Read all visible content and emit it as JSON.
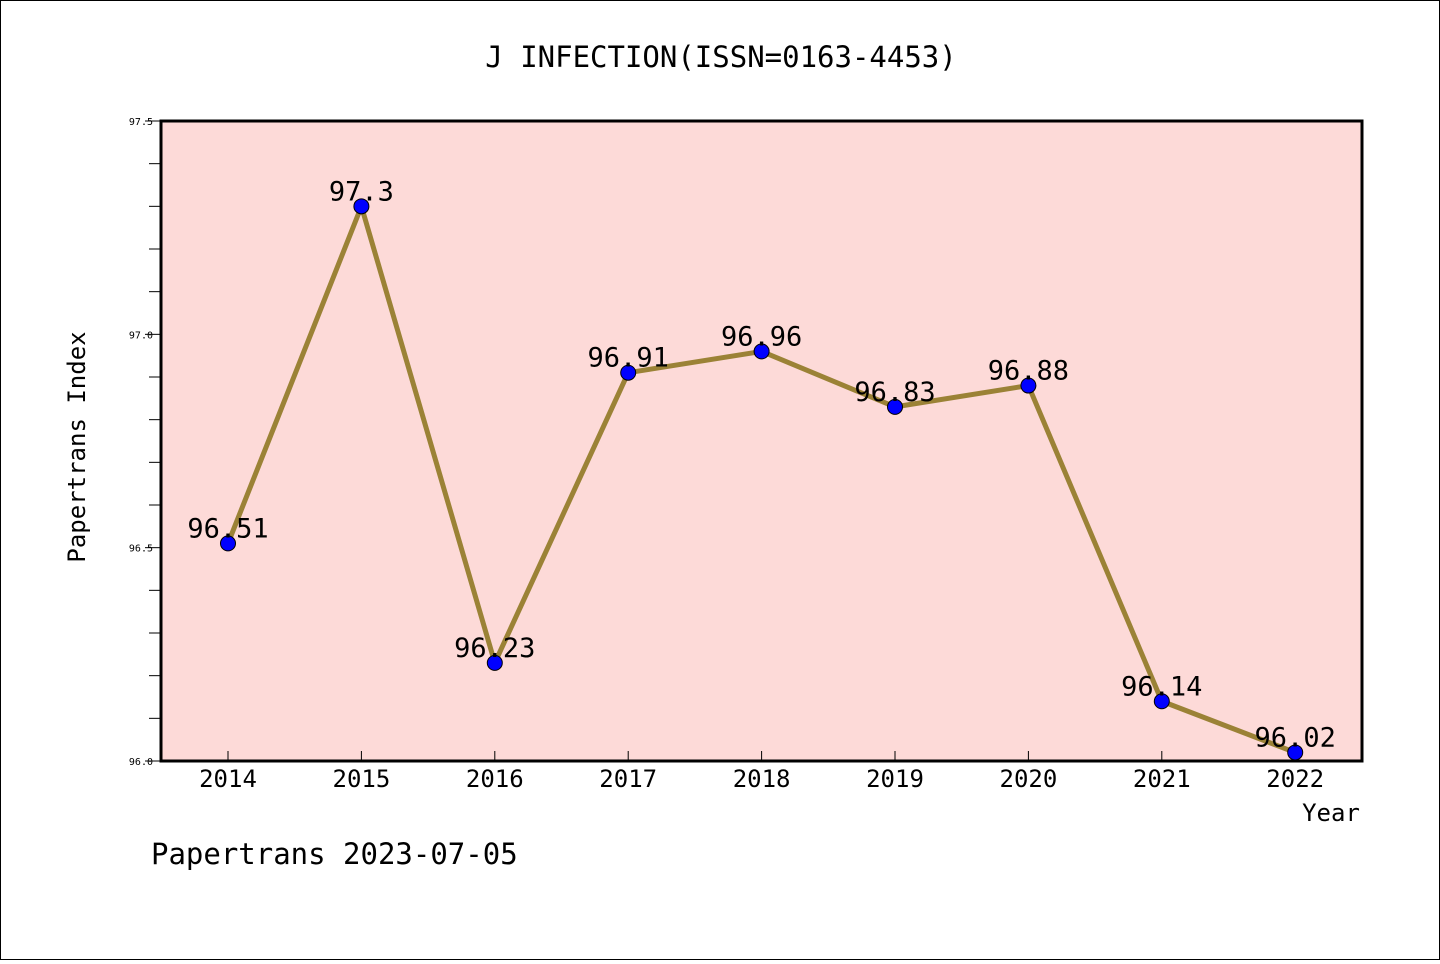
{
  "chart_data": {
    "type": "line",
    "title": "J INFECTION(ISSN=0163-4453)",
    "xlabel": "Year",
    "ylabel": "Papertrans Index",
    "categories": [
      "2014",
      "2015",
      "2016",
      "2017",
      "2018",
      "2019",
      "2020",
      "2021",
      "2022"
    ],
    "series": [
      {
        "values": [
          96.51,
          97.3,
          96.23,
          96.91,
          96.96,
          96.83,
          96.88,
          96.14,
          96.02
        ],
        "data_labels": [
          "96.51",
          "97.3",
          "96.23",
          "96.91",
          "96.96",
          "96.83",
          "96.88",
          "96.14",
          "96.02"
        ]
      }
    ],
    "ylim": [
      96.0,
      97.5
    ],
    "yticks": [
      "96.0",
      "96.5",
      "97.0",
      "97.5"
    ],
    "grid": false,
    "colors": {
      "plot_background": "#fddad8",
      "line": "#9b8236",
      "marker": "#0000ff"
    }
  },
  "footer": "Papertrans 2023-07-05"
}
